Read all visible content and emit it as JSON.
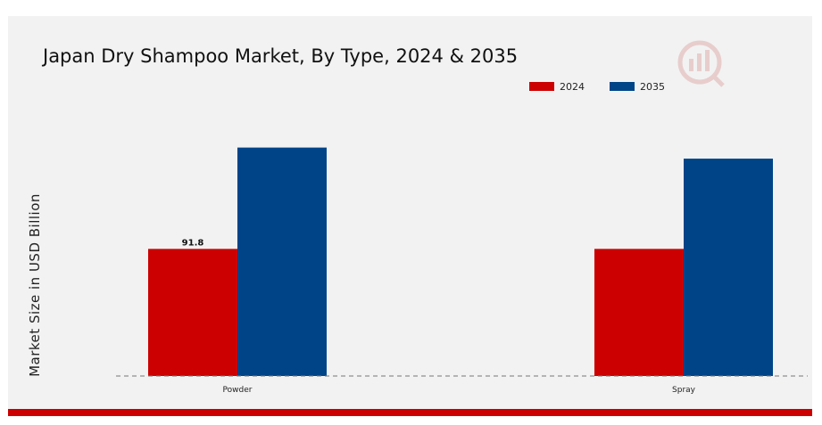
{
  "chart_data": {
    "type": "bar",
    "title": "Japan Dry Shampoo Market, By Type, 2024 & 2035",
    "ylabel": "Market Size in USD Billion",
    "xlabel": "",
    "categories": [
      "Powder",
      "Spray"
    ],
    "series": [
      {
        "name": "2024",
        "color": "#cc0000",
        "values": [
          91.8,
          91.8
        ]
      },
      {
        "name": "2035",
        "color": "#004488",
        "values": [
          165.0,
          157.0
        ]
      }
    ],
    "data_labels": [
      {
        "series": 0,
        "category": 0,
        "text": "91.8"
      }
    ],
    "ylim": [
      0,
      260
    ],
    "legend_position": "top-right",
    "grid": false,
    "baseline": "dashed"
  },
  "logo": {
    "icon": "analytics-logo-icon"
  }
}
